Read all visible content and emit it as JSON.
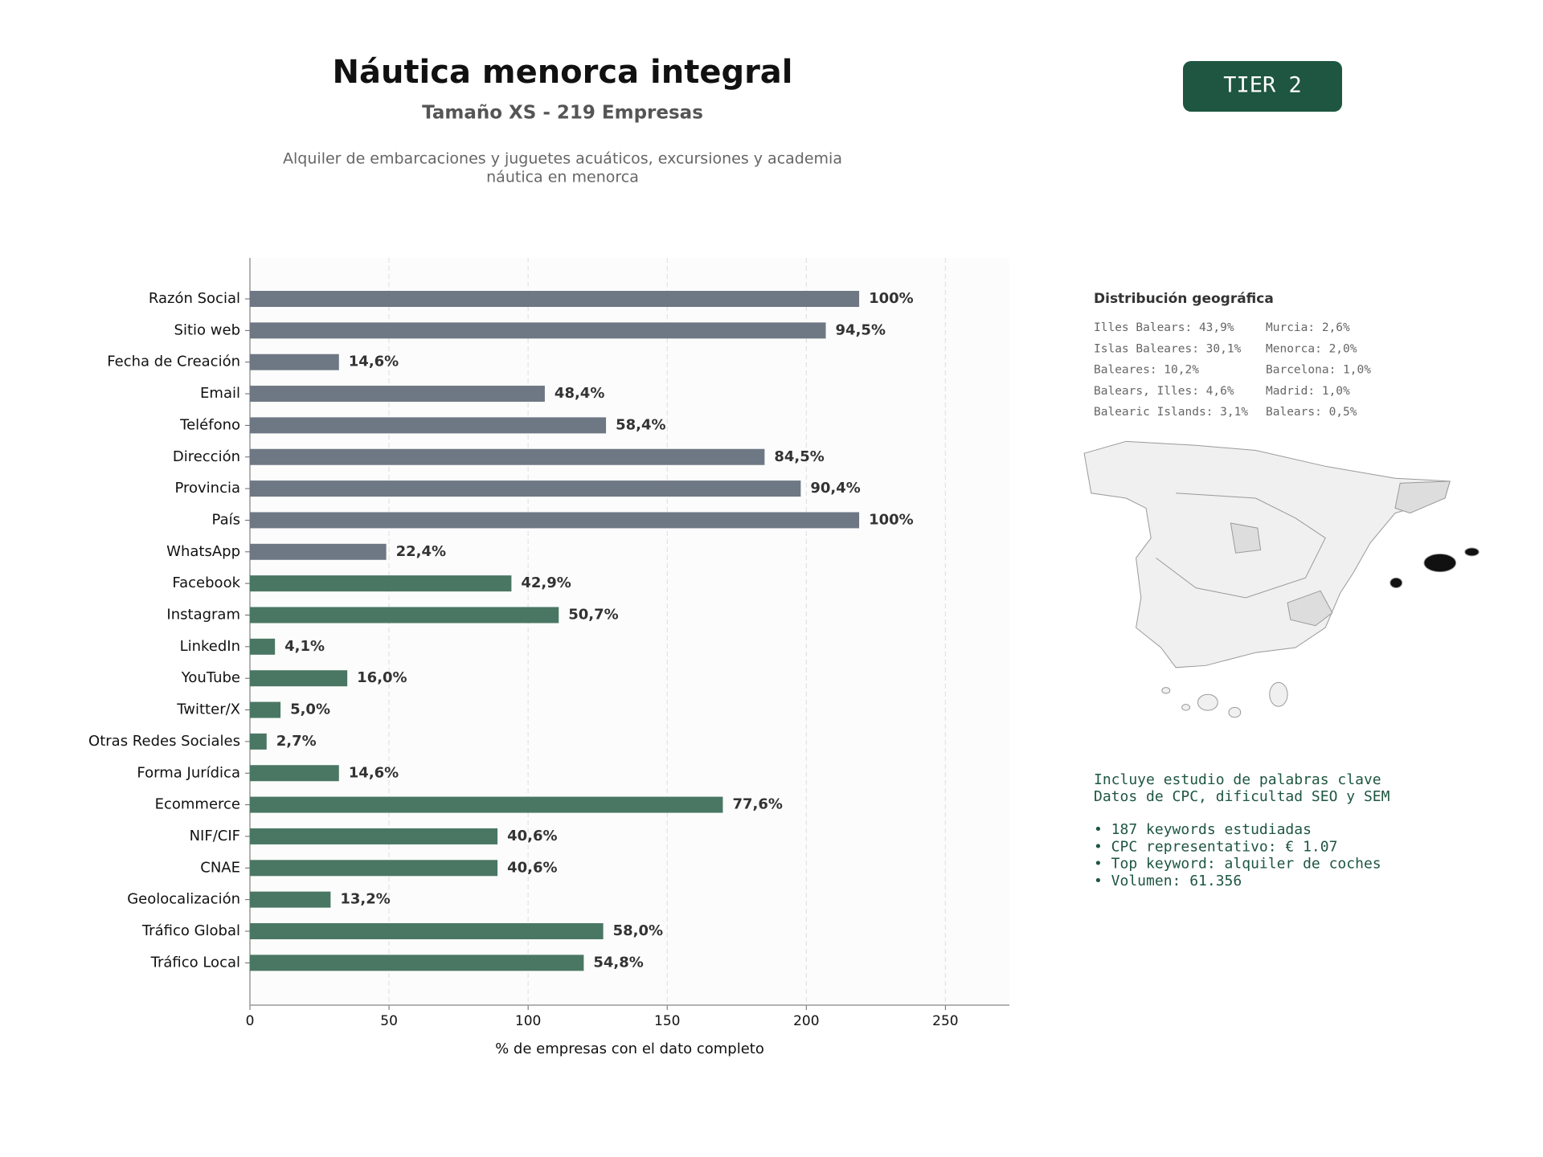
{
  "chart_data": {
    "type": "bar",
    "orientation": "horizontal",
    "title": "Náutica menorca integral",
    "subtitle": "Tamaño XS - 219 Empresas",
    "description": [
      "Alquiler de embarcaciones y juguetes acuáticos, excursiones y academia",
      "náutica en menorca"
    ],
    "badge": "TIER 2",
    "categories": [
      "Razón Social",
      "Sitio web",
      "Fecha de Creación",
      "Email",
      "Teléfono",
      "Dirección",
      "Provincia",
      "País",
      "WhatsApp",
      "Facebook",
      "Instagram",
      "LinkedIn",
      "YouTube",
      "Twitter/X",
      "Otras Redes Sociales",
      "Forma Jurídica",
      "Ecommerce",
      "NIF/CIF",
      "CNAE",
      "Geolocalización",
      "Tráfico Global",
      "Tráfico Local"
    ],
    "values": [
      219,
      207,
      32,
      106,
      128,
      185,
      198,
      219,
      49,
      94,
      111,
      9,
      35,
      11,
      6,
      32,
      170,
      89,
      89,
      29,
      127,
      120
    ],
    "value_labels": [
      "100%",
      "94,5%",
      "14,6%",
      "48,4%",
      "58,4%",
      "84,5%",
      "90,4%",
      "100%",
      "22,4%",
      "42,9%",
      "50,7%",
      "4,1%",
      "16,0%",
      "5,0%",
      "2,7%",
      "14,6%",
      "77,6%",
      "40,6%",
      "40,6%",
      "13,2%",
      "58,0%",
      "54,8%"
    ],
    "colors": [
      "#6e7884",
      "#6e7884",
      "#6e7884",
      "#6e7884",
      "#6e7884",
      "#6e7884",
      "#6e7884",
      "#6e7884",
      "#6e7884",
      "#4a7763",
      "#4a7763",
      "#4a7763",
      "#4a7763",
      "#4a7763",
      "#4a7763",
      "#4a7763",
      "#4a7763",
      "#4a7763",
      "#4a7763",
      "#4a7763",
      "#4a7763",
      "#4a7763"
    ],
    "xlim": [
      0,
      273
    ],
    "xticks": [
      0,
      50,
      100,
      150,
      200,
      250
    ],
    "xlabel": "% de empresas con el dato completo",
    "grid": true
  },
  "geo": {
    "title": "Distribución geográfica",
    "items": [
      [
        "Illes Balears: 43,9%",
        "Murcia: 2,6%"
      ],
      [
        "Islas Baleares: 30,1%",
        "Menorca: 2,0%"
      ],
      [
        "Baleares: 10,2%",
        "Barcelona: 1,0%"
      ],
      [
        "Balears, Illes: 4,6%",
        "Madrid: 1,0%"
      ],
      [
        "Balearic Islands: 3,1%",
        "Balears: 0,5%"
      ]
    ]
  },
  "keywords": {
    "intro": [
      "Incluye estudio de palabras clave",
      "Datos de CPC, dificultad SEO y SEM"
    ],
    "bullets": [
      "• 187 keywords estudiadas",
      "• CPC representativo: € 1.07",
      "• Top keyword: alquiler de coches",
      "• Volumen: 61.356"
    ]
  }
}
